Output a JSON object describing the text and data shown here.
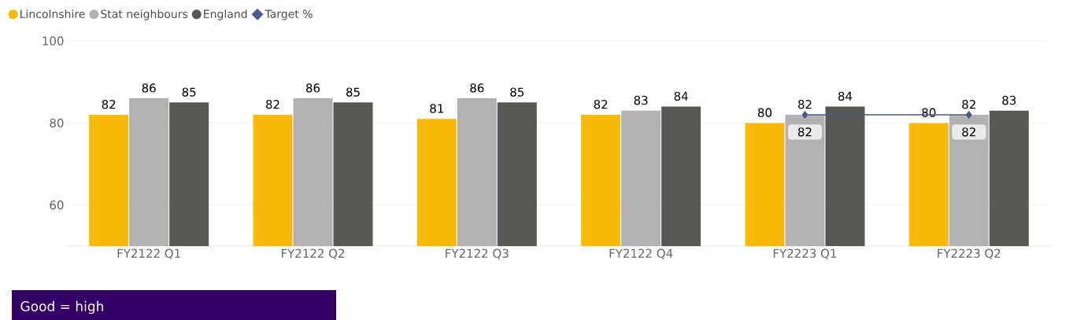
{
  "chart_data": {
    "type": "bar",
    "categories": [
      "FY2122 Q1",
      "FY2122 Q2",
      "FY2122 Q3",
      "FY2122 Q4",
      "FY2223 Q1",
      "FY2223 Q2"
    ],
    "series": [
      {
        "name": "Lincolnshire",
        "color": "#f9b908",
        "values": [
          82,
          82,
          81,
          82,
          80,
          80
        ]
      },
      {
        "name": "Stat neighbours",
        "color": "#b2b2b2",
        "values": [
          86,
          86,
          86,
          83,
          82,
          82
        ]
      },
      {
        "name": "England",
        "color": "#575853",
        "values": [
          85,
          85,
          85,
          84,
          84,
          83
        ]
      },
      {
        "name": "Target %",
        "type": "line",
        "color": "#4a5a8c",
        "values": [
          null,
          null,
          null,
          null,
          82,
          82
        ]
      }
    ],
    "ylim": [
      50,
      100
    ],
    "yticks": [
      60,
      80,
      100
    ],
    "grid": "y",
    "legend": "top left",
    "marker": "diamond",
    "data_labels": true,
    "annotations": [
      "Good = high"
    ]
  }
}
